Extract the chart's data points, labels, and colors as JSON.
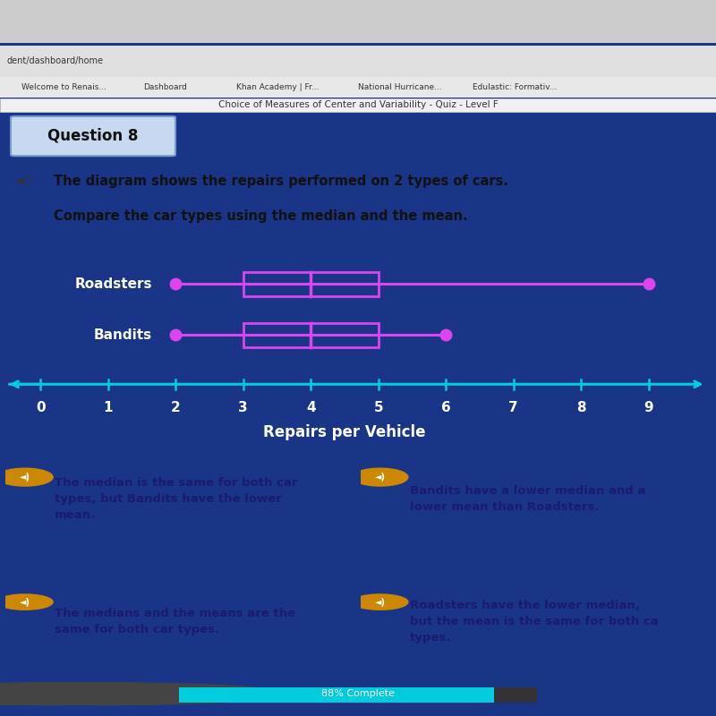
{
  "title_line1": "The diagram shows the repairs performed on 2 types of cars.",
  "title_line2": "Compare the car types using the median and the mean.",
  "xlabel": "Repairs per Vehicle",
  "categories": [
    "Roadsters",
    "Bandits"
  ],
  "roadsters": {
    "min": 2,
    "q1": 3,
    "median": 4,
    "q3": 5,
    "max": 9
  },
  "bandits": {
    "min": 2,
    "q1": 3,
    "median": 4,
    "q3": 5,
    "max": 6
  },
  "axis_min": 0,
  "axis_max": 9,
  "box_color": "#dd44ee",
  "axis_color": "#00ccdd",
  "dark_bg": "#1a3588",
  "medium_bg": "#1e40a0",
  "white_bg": "#f5f5f5",
  "quiz_bar_bg": "#e8e8e8",
  "question_box_bg": "#c8d8f0",
  "question_box_border": "#7799cc",
  "answer_bg": "#f5a623",
  "answer_text_color": "#1a1a6e",
  "title_text_color": "#111111",
  "white_text": "#ffffff",
  "quiz_title": "Choice of Measures of Center and Variability - Quiz - Level F",
  "question_label": "Question 8",
  "answers": [
    "The median is the same for both car\ntypes, but Bandits have the lower\nmean.",
    "Bandits have a lower median and a\nlower mean than Roadsters.",
    "The medians and the means are the\nsame for both car types.",
    "Roadsters have the lower median,\nbut the mean is the same for both ca\ntypes."
  ]
}
